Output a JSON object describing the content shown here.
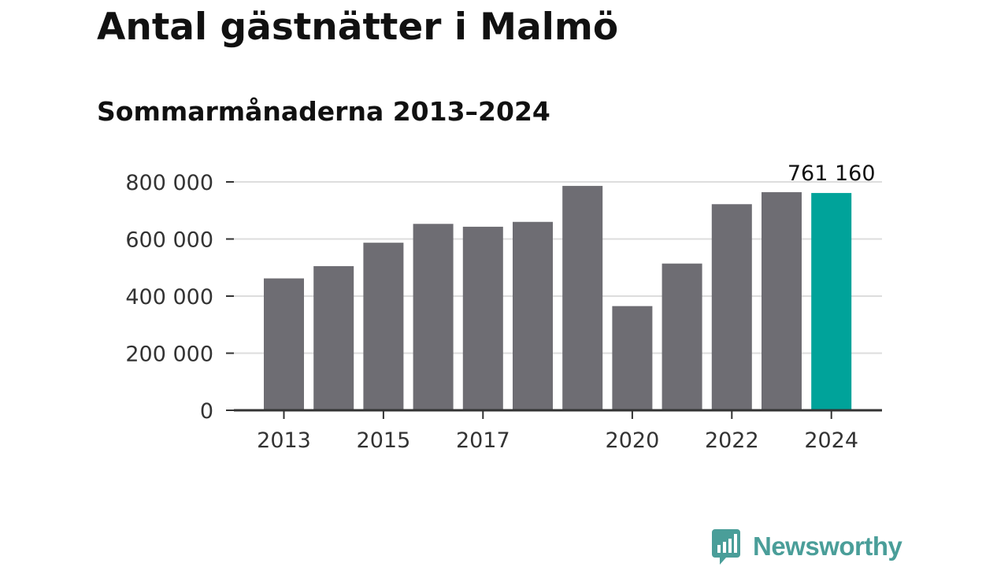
{
  "header": {
    "title": "Antal gästnätter i Malmö",
    "subtitle": "Sommarmånaderna 2013–2024"
  },
  "chart_data": {
    "type": "bar",
    "title": "Antal gästnätter i Malmö",
    "subtitle": "Sommarmånaderna 2013–2024",
    "categories": [
      "2013",
      "2014",
      "2015",
      "2016",
      "2017",
      "2018",
      "2019",
      "2020",
      "2021",
      "2022",
      "2023",
      "2024"
    ],
    "values": [
      462000,
      505000,
      587000,
      653000,
      643000,
      660000,
      786000,
      365000,
      514000,
      722000,
      764000,
      761160
    ],
    "x_tick_labels": [
      "2013",
      "2015",
      "2017",
      "2020",
      "2022",
      "2024"
    ],
    "y_ticks": [
      0,
      200000,
      400000,
      600000,
      800000
    ],
    "y_tick_labels": [
      "0",
      "200 000",
      "400 000",
      "600 000",
      "800 000"
    ],
    "ylim": [
      0,
      800000
    ],
    "highlight_index": 11,
    "highlight_label": "761 160",
    "colors": {
      "bar": "#6e6d73",
      "highlight": "#00a39a",
      "grid": "#dddddd",
      "axis": "#333333",
      "text": "#333333"
    },
    "grid": true,
    "xlabel": "",
    "ylabel": ""
  },
  "brand": {
    "name": "Newsworthy",
    "color": "#4a9e99",
    "icon": "bar-chart-speech-bubble-icon"
  }
}
